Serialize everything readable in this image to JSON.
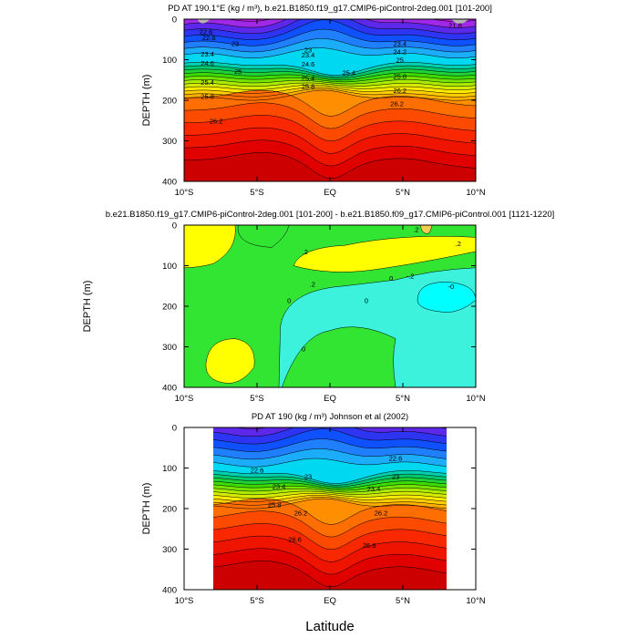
{
  "figure": {
    "xlabel": "Latitude"
  },
  "chart_data": [
    {
      "type": "contour",
      "title": "PD AT 190.1°E (kg / m³), b.e21.B1850.f19_g17.CMIP6-piControl-2deg.001 [101-200]",
      "ylabel": "DEPTH (m)",
      "xlim": [
        -10,
        10
      ],
      "ylim": [
        400,
        0
      ],
      "xticks": [
        "10°S",
        "5°S",
        "EQ",
        "5°N",
        "10°N"
      ],
      "yticks": [
        "0",
        "100",
        "200",
        "300",
        "400"
      ],
      "levels": [
        21.8,
        22.0,
        22.2,
        22.4,
        22.6,
        22.8,
        23.0,
        23.2,
        23.4,
        23.6,
        23.8,
        24.0,
        24.2,
        24.4,
        24.6,
        24.8,
        25.0,
        25.2,
        25.4,
        25.6,
        25.8,
        26.0,
        26.2,
        26.4,
        26.6
      ],
      "contour_labels": [
        "21.8",
        "22.6",
        "22.6",
        "23",
        "23",
        "23.4",
        "23.4",
        "23.4",
        "24.2",
        "24.6",
        "24.6",
        "25",
        "25",
        "25.4",
        "25.4",
        "25.4",
        "25.8",
        "25.8",
        "25.8",
        "26.2",
        "26.2",
        "26.2"
      ]
    },
    {
      "type": "contour",
      "title": "b.e21.B1850.f19_g17.CMIP6-piControl-2deg.001 [101-200] - b.e21.B1850.f09_g17.CMIP6-piControl.001 [1121-1220]",
      "ylabel": "DEPTH (m)",
      "xlim": [
        -10,
        10
      ],
      "ylim": [
        400,
        0
      ],
      "xticks": [
        "10°S",
        "5°S",
        "EQ",
        "5°N",
        "10°N"
      ],
      "yticks": [
        "0",
        "100",
        "200",
        "300",
        "400"
      ],
      "levels": [
        -0.2,
        0.0,
        0.2,
        0.4
      ],
      "contour_labels": [
        ".2",
        ".2",
        ".2",
        ".2",
        "0",
        "0",
        "0",
        "0",
        "-.2",
        "-0"
      ]
    },
    {
      "type": "contour",
      "title": "PD AT 190 (kg / m³) Johnson et al (2002)",
      "ylabel": "DEPTH (m)",
      "xlim": [
        -10,
        10
      ],
      "ylim": [
        400,
        0
      ],
      "data_xrange": [
        -8,
        8
      ],
      "xticks": [
        "10°S",
        "5°S",
        "EQ",
        "5°N",
        "10°N"
      ],
      "yticks": [
        "0",
        "100",
        "200",
        "300",
        "400"
      ],
      "levels": [
        22.0,
        22.2,
        22.4,
        22.6,
        22.8,
        23.0,
        23.2,
        23.4,
        23.6,
        23.8,
        24.0,
        24.2,
        24.4,
        24.6,
        24.8,
        25.0,
        25.2,
        25.4,
        25.6,
        25.8,
        26.0,
        26.2,
        26.4,
        26.6
      ],
      "contour_labels": [
        "22.6",
        "22.6",
        "23",
        "23",
        "23.4",
        "23.4",
        "25.8",
        "26.2",
        "26.2",
        "26.6",
        "26.6"
      ]
    }
  ]
}
